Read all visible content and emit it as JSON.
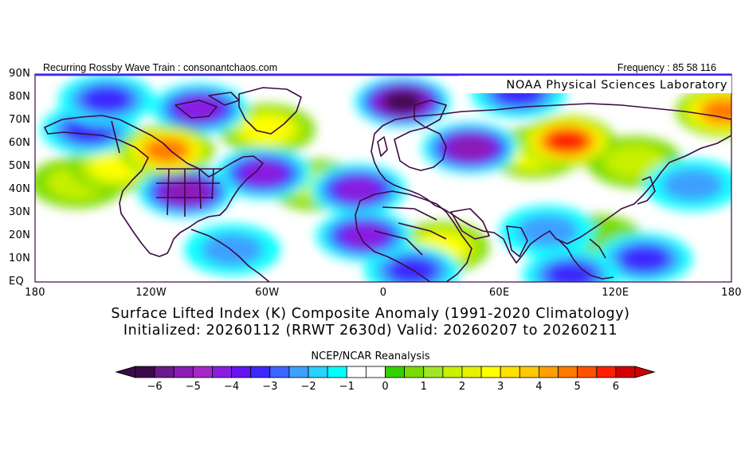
{
  "header": {
    "left_text": "Recurring Rossby Wave Train : consonantchaos.com",
    "right_text": "Frequency : 85 58 116"
  },
  "map": {
    "credit_label": "NOAA Physical Sciences Laboratory",
    "lat_labels": [
      "90N",
      "80N",
      "70N",
      "60N",
      "50N",
      "40N",
      "30N",
      "20N",
      "10N",
      "EQ"
    ],
    "lon_labels": [
      "180",
      "120W",
      "60W",
      "0",
      "60E",
      "120E",
      "180"
    ],
    "background_color": "#ffffff",
    "coastline_color": "#3d0a44"
  },
  "title": {
    "line1": "Surface Lifted Index (K) Composite Anomaly (1991-2020 Climatology)",
    "line2": "Initialized: 20260112 (RRWT 2630d) Valid: 20260207 to 20260211"
  },
  "colorbar": {
    "title": "NCEP/NCAR Reanalysis",
    "labels": [
      "-6",
      "-5",
      "-4",
      "-3",
      "-2",
      "-1",
      "0",
      "1",
      "2",
      "3",
      "4",
      "5",
      "6"
    ],
    "colors": [
      "#3c0a4a",
      "#6a1a8c",
      "#8c1cb4",
      "#a628c8",
      "#8a1ee0",
      "#6414f0",
      "#3c28ff",
      "#3c64ff",
      "#3ca0ff",
      "#28d2ff",
      "#00ffff",
      "#ffffff",
      "#ffffff",
      "#32d200",
      "#78dc00",
      "#a0e628",
      "#c8f000",
      "#e6f000",
      "#ffff00",
      "#ffe100",
      "#ffc800",
      "#ffa000",
      "#ff7800",
      "#ff5000",
      "#ff1e00",
      "#d20000"
    ]
  },
  "chart_data": {
    "type": "heatmap",
    "variable": "Surface Lifted Index (K) Composite Anomaly",
    "x_range": [
      "180",
      "180"
    ],
    "y_range": [
      "EQ",
      "90N"
    ],
    "color_scale": {
      "min": -6,
      "max": 6,
      "step": 0.5
    },
    "anomaly_blobs": [
      {
        "lon": 95,
        "lat": 61,
        "value": 5.5
      },
      {
        "lon": -112,
        "lat": 57,
        "value": 5.0
      },
      {
        "lon": 176,
        "lat": 74,
        "value": 5.0
      },
      {
        "lon": 78,
        "lat": 56,
        "value": 2.8
      },
      {
        "lon": -138,
        "lat": 50,
        "value": 2.5
      },
      {
        "lon": -60,
        "lat": 66,
        "value": 2.5
      },
      {
        "lon": -158,
        "lat": 43,
        "value": 2.0
      },
      {
        "lon": -35,
        "lat": 42,
        "value": 1.8
      },
      {
        "lon": 110,
        "lat": 18,
        "value": 1.2
      },
      {
        "lon": 130,
        "lat": 52,
        "value": 1.5
      },
      {
        "lon": 30,
        "lat": 15,
        "value": 2.5
      },
      {
        "lon": -102,
        "lat": 39,
        "value": -4.5
      },
      {
        "lon": -62,
        "lat": 47,
        "value": -4.0
      },
      {
        "lon": -13,
        "lat": 40,
        "value": -3.5
      },
      {
        "lon": 10,
        "lat": 78,
        "value": -5.5
      },
      {
        "lon": -95,
        "lat": 75,
        "value": -4.0
      },
      {
        "lon": -152,
        "lat": 66,
        "value": -3.0
      },
      {
        "lon": -143,
        "lat": 79,
        "value": -3.0
      },
      {
        "lon": -10,
        "lat": 20,
        "value": -4.0
      },
      {
        "lon": 45,
        "lat": 58,
        "value": -4.5
      },
      {
        "lon": 70,
        "lat": 82,
        "value": -2.5
      },
      {
        "lon": 85,
        "lat": 22,
        "value": -2.0
      },
      {
        "lon": 97,
        "lat": 3,
        "value": -3.0
      },
      {
        "lon": -78,
        "lat": 14,
        "value": -2.0
      },
      {
        "lon": 135,
        "lat": 10,
        "value": -2.5
      },
      {
        "lon": 160,
        "lat": 42,
        "value": -1.5
      },
      {
        "lon": 15,
        "lat": 5,
        "value": -2.5
      }
    ]
  }
}
